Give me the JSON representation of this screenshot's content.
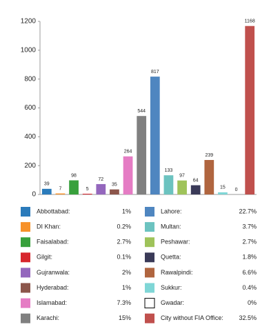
{
  "chart_data": {
    "type": "bar",
    "categories": [
      "Abbottabad:",
      "DI Khan:",
      "Faisalabad:",
      "Gilgit:",
      "Gujranwala:",
      "Hyderabad:",
      "Islamabad:",
      "Karachi:",
      "Lahore:",
      "Multan:",
      "Peshawar:",
      "Quetta:",
      "Rawalpindi:",
      "Sukkur:",
      "Gwadar:",
      "City without FIA Office:"
    ],
    "values": [
      39,
      7,
      98,
      5,
      72,
      35,
      264,
      544,
      817,
      133,
      97,
      64,
      239,
      15,
      0,
      1168
    ],
    "percent_labels": [
      "1%",
      "0.2%",
      "2.7%",
      "0.1%",
      "2%",
      "1%",
      "7.3%",
      "15%",
      "22.7%",
      "3.7%",
      "2.7%",
      "1.8%",
      "6.6%",
      "0.4%",
      "0%",
      "32.5%"
    ],
    "colors": [
      "#2b7bbb",
      "#f7922a",
      "#38a03c",
      "#d7262e",
      "#9467bd",
      "#8c564b",
      "#e57cc4",
      "#808080",
      "#4f86c0",
      "#6cc3c0",
      "#9fc35a",
      "#3a3a58",
      "#b0653f",
      "#7fd6d6",
      "#ffffff",
      "#c0504d"
    ],
    "ylim": [
      0,
      1200
    ],
    "yticks": [
      0,
      200,
      400,
      600,
      800,
      1000,
      1200
    ]
  }
}
